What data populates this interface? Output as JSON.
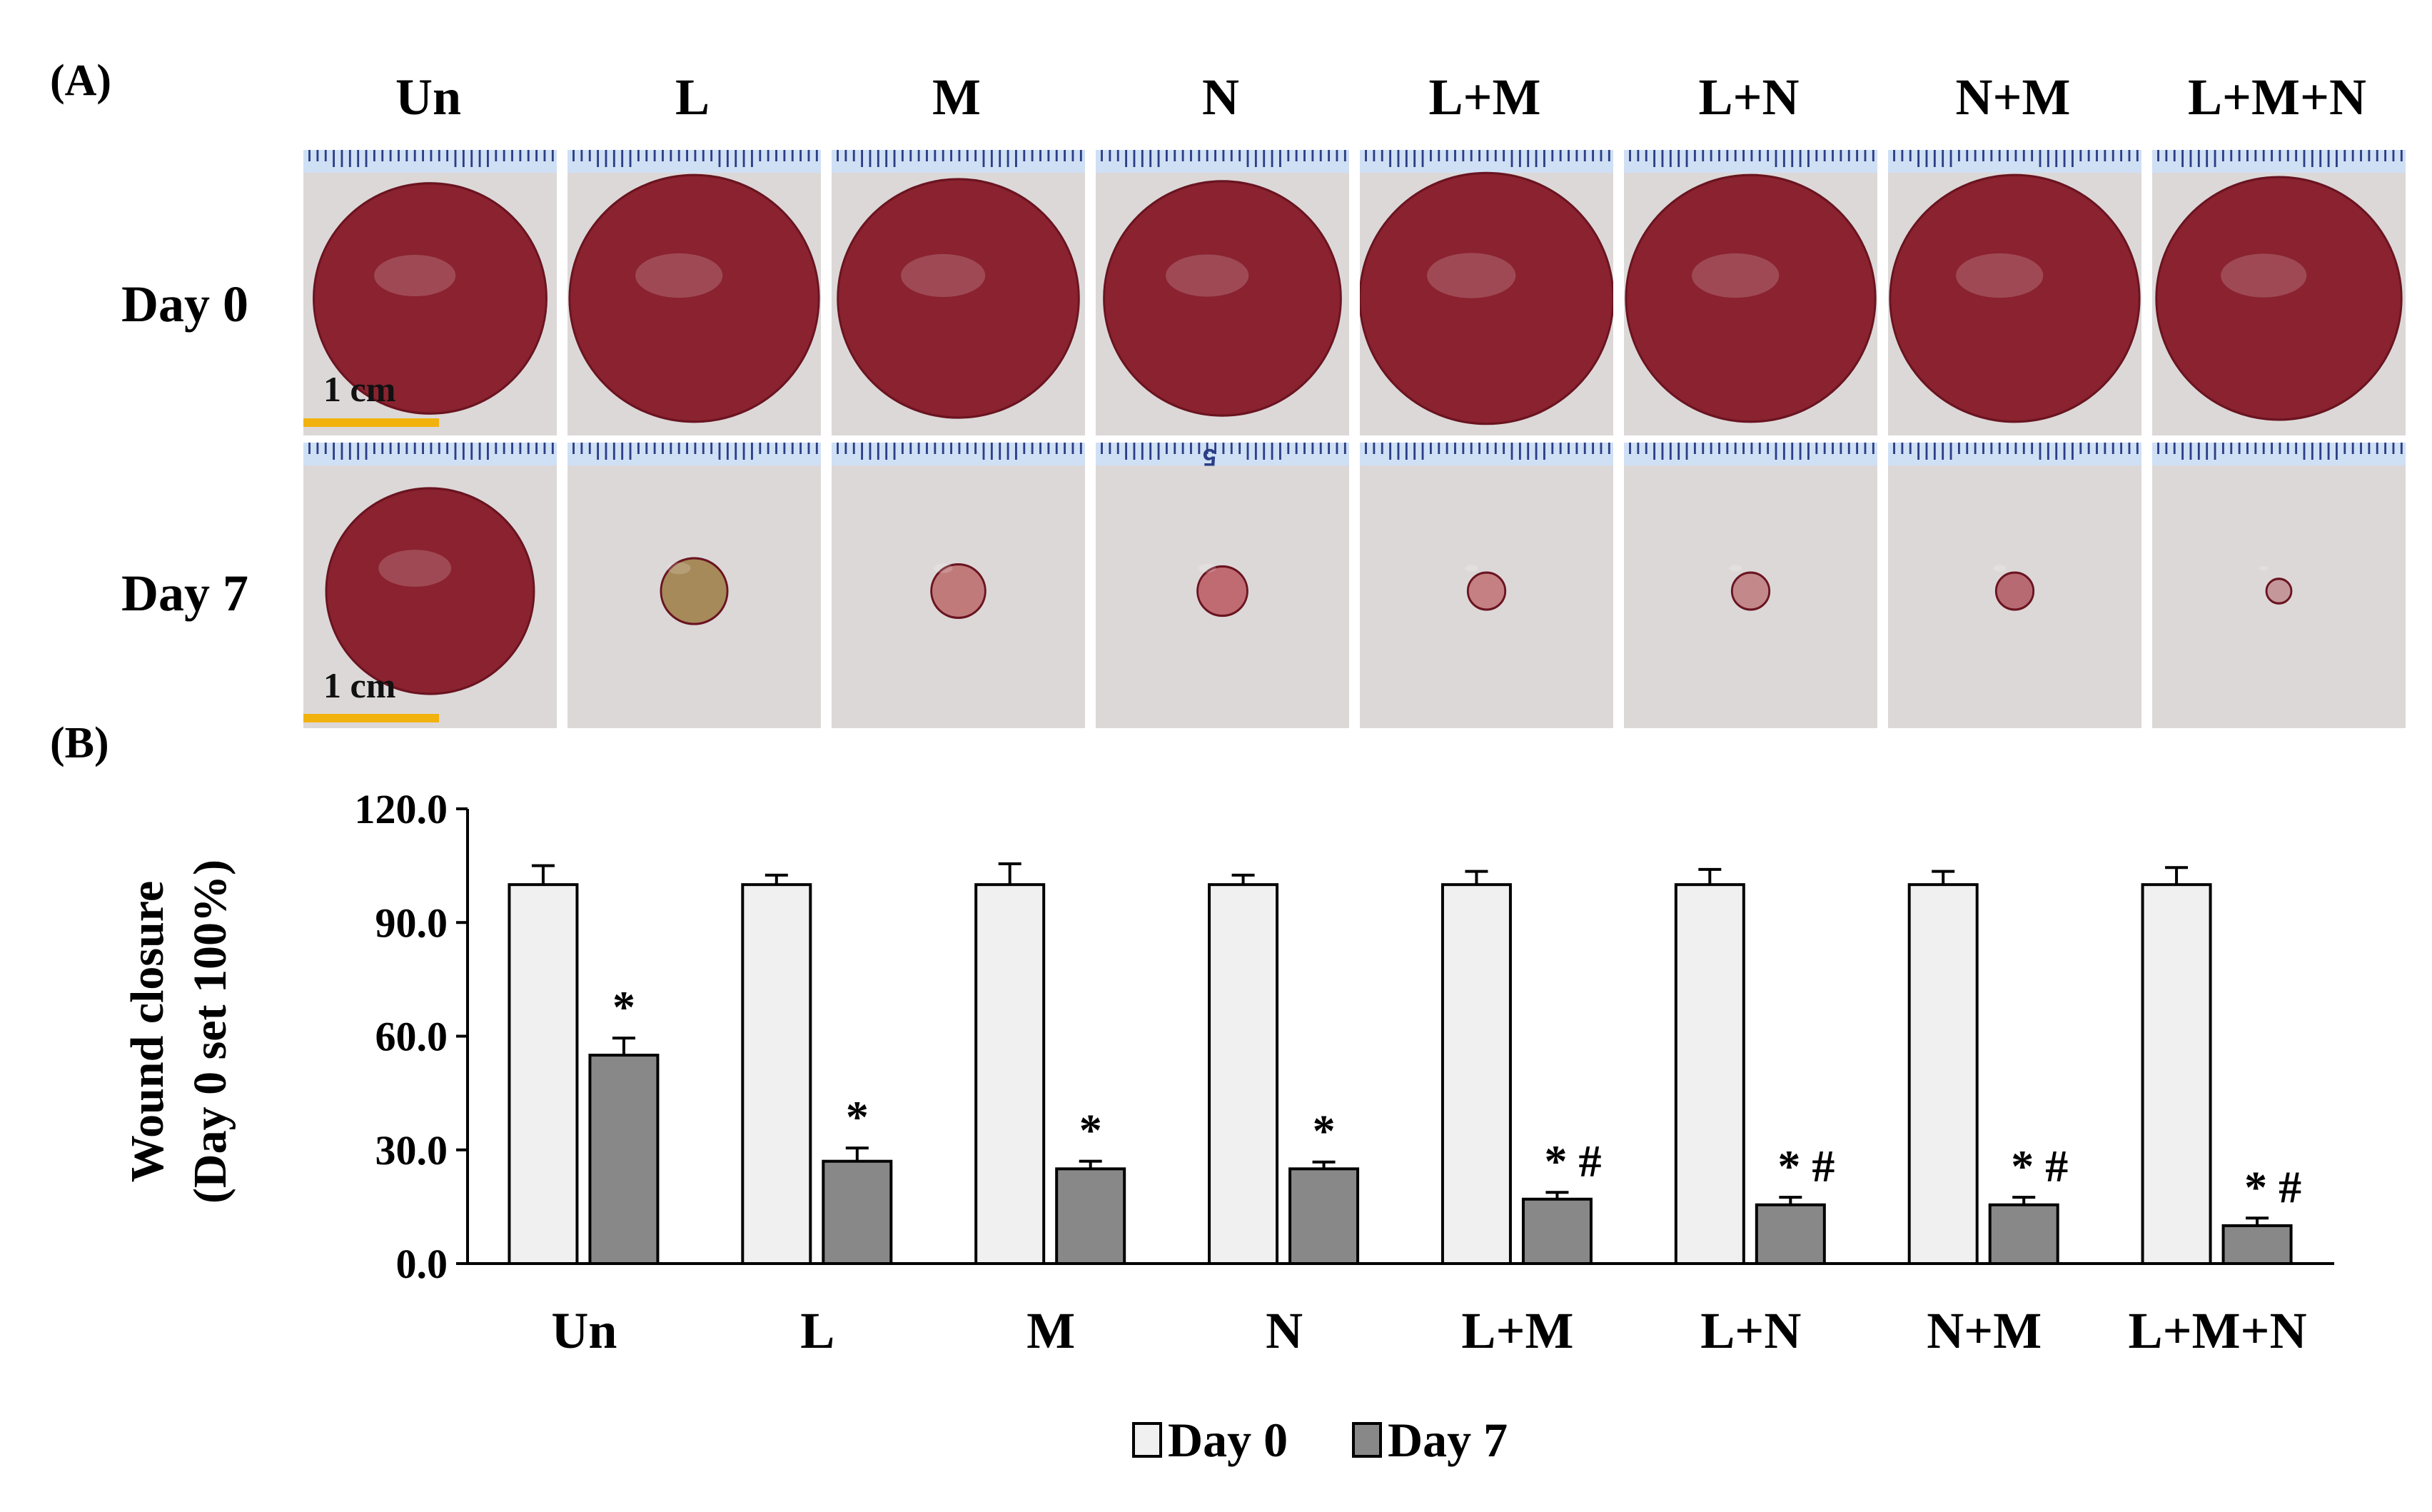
{
  "panel_a": {
    "label": "(A)",
    "groups": [
      "Un",
      "L",
      "M",
      "N",
      "L+M",
      "L+N",
      "N+M",
      "L+M+N"
    ],
    "rows": [
      "Day 0",
      "Day 7"
    ],
    "scale_bar_label": "1 cm",
    "ruler_digit": "5",
    "photo_colors": {
      "skin": "#dcd8d8",
      "wound": "#8a2230",
      "ruler": "#cfe0f5",
      "scale_bar": "#f2b20d"
    }
  },
  "panel_b": {
    "label": "(B)"
  },
  "chart_data": {
    "type": "bar",
    "title": "",
    "xlabel": "",
    "ylabel": [
      "Wound closure",
      "(Day 0 set 100%)"
    ],
    "ylim": [
      0,
      120
    ],
    "yticks": [
      0,
      30,
      60,
      90,
      120
    ],
    "ytick_labels": [
      "0.0",
      "30.0",
      "60.0",
      "90.0",
      "120.0"
    ],
    "categories": [
      "Un",
      "L",
      "M",
      "N",
      "L+M",
      "L+N",
      "N+M",
      "L+M+N"
    ],
    "series": [
      {
        "name": "Day 0",
        "color": "#f0f0f0",
        "values": [
          100,
          100,
          100,
          100,
          100,
          100,
          100,
          100
        ],
        "errors": [
          5,
          2.5,
          5.5,
          2.5,
          3.5,
          4,
          3.5,
          4.5
        ]
      },
      {
        "name": "Day 7",
        "color": "#888888",
        "values": [
          55,
          27,
          25,
          25,
          17,
          15.5,
          15.5,
          10
        ],
        "errors": [
          4.5,
          3.5,
          2,
          1.8,
          1.8,
          2,
          2,
          2
        ],
        "annotations": [
          "*",
          "*",
          "*",
          "*",
          "* #",
          "* #",
          "* #",
          "* #"
        ]
      }
    ],
    "legend": [
      "Day 0",
      "Day 7"
    ],
    "legend_position": "bottom-center",
    "grid": false
  }
}
